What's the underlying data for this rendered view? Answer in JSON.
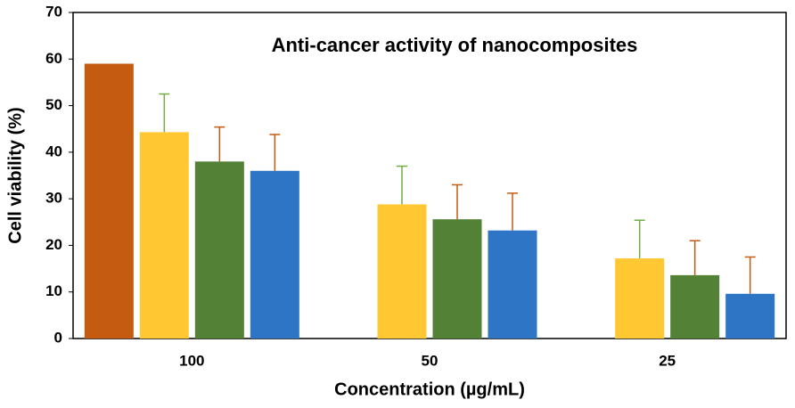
{
  "chart_data": {
    "type": "bar",
    "title": "Anti-cancer  activity  of  nanocomposites",
    "x_label": "Concentration (µg/mL)",
    "y_label": "Cell viability (%)",
    "categories": [
      "100",
      "50",
      "25"
    ],
    "series": [
      {
        "color": "#c55a11",
        "error_color": "#c55a11",
        "values": [
          59,
          null,
          null
        ],
        "errors": [
          null,
          null,
          null
        ]
      },
      {
        "color": "#ffc832",
        "error_color": "#70ad47",
        "values": [
          44.3,
          28.8,
          17.2
        ],
        "errors": [
          8.2,
          8.2,
          8.2
        ]
      },
      {
        "color": "#538135",
        "error_color": "#c55a11",
        "values": [
          38,
          25.6,
          13.6
        ],
        "errors": [
          7.4,
          7.4,
          7.4
        ]
      },
      {
        "color": "#2e75c6",
        "error_color": "#c55a11",
        "values": [
          36,
          23.2,
          9.6
        ],
        "errors": [
          7.8,
          8,
          7.9
        ]
      }
    ],
    "ylim": [
      0,
      70
    ],
    "yticks": [
      0,
      10,
      20,
      30,
      40,
      50,
      60,
      70
    ],
    "grid": false
  }
}
